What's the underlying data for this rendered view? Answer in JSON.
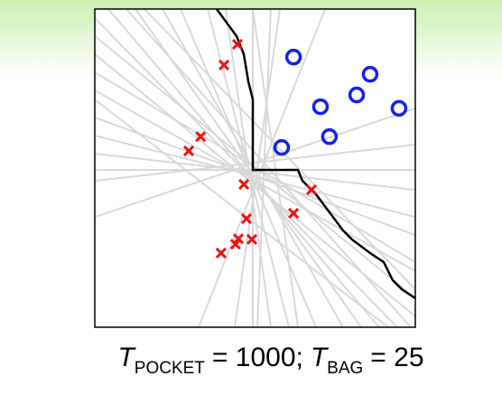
{
  "chart_data": {
    "type": "scatter",
    "xlim": [
      0,
      1
    ],
    "ylim": [
      0,
      1
    ],
    "series": [
      {
        "color": "#ee1111",
        "marker": "x",
        "x": [
          0.445,
          0.403,
          0.33,
          0.293,
          0.465,
          0.676,
          0.62,
          0.473,
          0.448,
          0.49,
          0.439,
          0.394
        ],
        "y": [
          0.889,
          0.824,
          0.599,
          0.554,
          0.449,
          0.432,
          0.358,
          0.341,
          0.278,
          0.276,
          0.261,
          0.233
        ]
      },
      {
        "color": "#1122ee",
        "marker": "o",
        "x": [
          0.62,
          0.859,
          0.817,
          0.704,
          0.949,
          0.732,
          0.583
        ],
        "y": [
          0.849,
          0.795,
          0.73,
          0.693,
          0.688,
          0.599,
          0.565
        ]
      }
    ],
    "caption": [
      "T",
      "POCKET",
      "= 1000;",
      "T",
      "BAG",
      "= 25"
    ]
  }
}
